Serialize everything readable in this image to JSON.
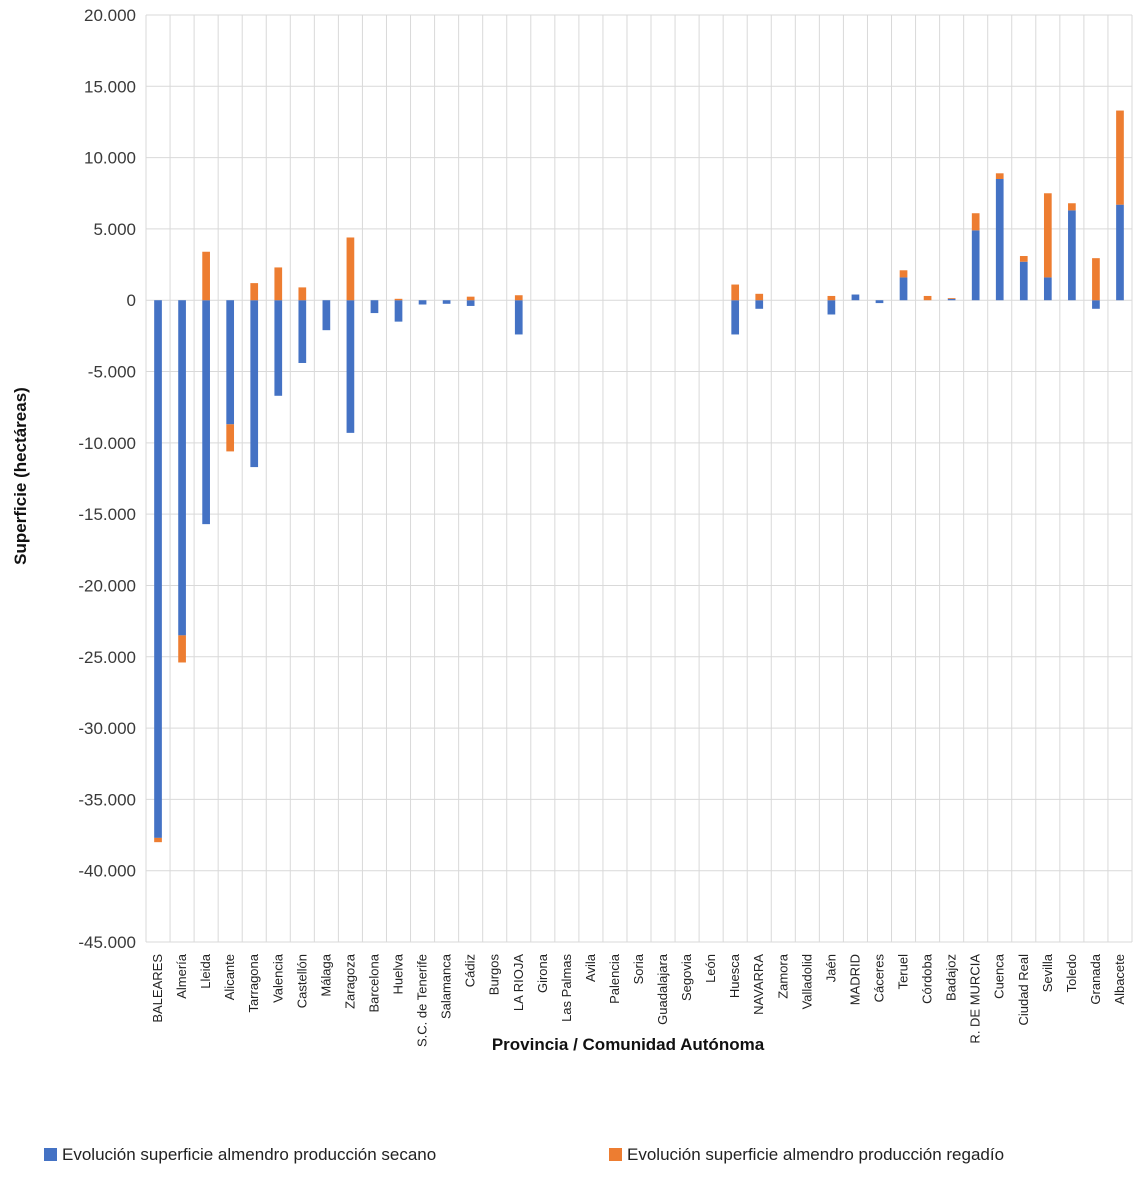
{
  "chart_data": {
    "type": "bar",
    "stacked": true,
    "title": "",
    "xlabel": "Provincia / Comunidad Autónoma",
    "ylabel": "Superficie (hectáreas)",
    "ylim": [
      -45000,
      20000
    ],
    "ytick_step": 5000,
    "yticks": [
      "20.000",
      "15.000",
      "10.000",
      "5.000",
      "0",
      "-5.000",
      "-10.000",
      "-15.000",
      "-20.000",
      "-25.000",
      "-30.000",
      "-35.000",
      "-40.000",
      "-45.000"
    ],
    "grid": true,
    "legend_position": "bottom",
    "categories": [
      "BALEARES",
      "Almería",
      "Lleida",
      "Alicante",
      "Tarragona",
      "Valencia",
      "Castellón",
      "Málaga",
      "Zaragoza",
      "Barcelona",
      "Huelva",
      "S.C. de Tenerife",
      "Salamanca",
      "Cádiz",
      "Burgos",
      "LA RIOJA",
      "Girona",
      "Las Palmas",
      "Avila",
      "Palencia",
      "Soria",
      "Guadalajara",
      "Segovia",
      "León",
      "Huesca",
      "NAVARRA",
      "Zamora",
      "Valladolid",
      "Jaén",
      "MADRID",
      "Cáceres",
      "Teruel",
      "Córdoba",
      "Badajoz",
      "R. DE MURCIA",
      "Cuenca",
      "Ciudad Real",
      "Sevilla",
      "Toledo",
      "Granada",
      "Albacete"
    ],
    "series": [
      {
        "name": "Evolución superficie almendro producción secano",
        "color": "#4472C4",
        "values": [
          -37700,
          -23500,
          -15700,
          -8700,
          -11700,
          -6700,
          -4400,
          -2100,
          -9300,
          -900,
          -1500,
          -300,
          -250,
          -400,
          0,
          -2400,
          0,
          0,
          0,
          0,
          0,
          0,
          0,
          0,
          -2400,
          -600,
          0,
          0,
          -1000,
          400,
          -200,
          1600,
          0,
          100,
          4900,
          8500,
          2700,
          1600,
          6300,
          -600,
          6700
        ]
      },
      {
        "name": "Evolución superficie almendro producción regadío",
        "color": "#ED7D31",
        "values": [
          -300,
          -1900,
          3400,
          -1900,
          1200,
          2300,
          900,
          0,
          4400,
          0,
          100,
          0,
          0,
          250,
          0,
          350,
          0,
          0,
          0,
          0,
          0,
          0,
          0,
          0,
          1100,
          450,
          0,
          0,
          300,
          0,
          0,
          500,
          300,
          50,
          1200,
          400,
          400,
          5900,
          500,
          2950,
          6600
        ]
      }
    ]
  }
}
